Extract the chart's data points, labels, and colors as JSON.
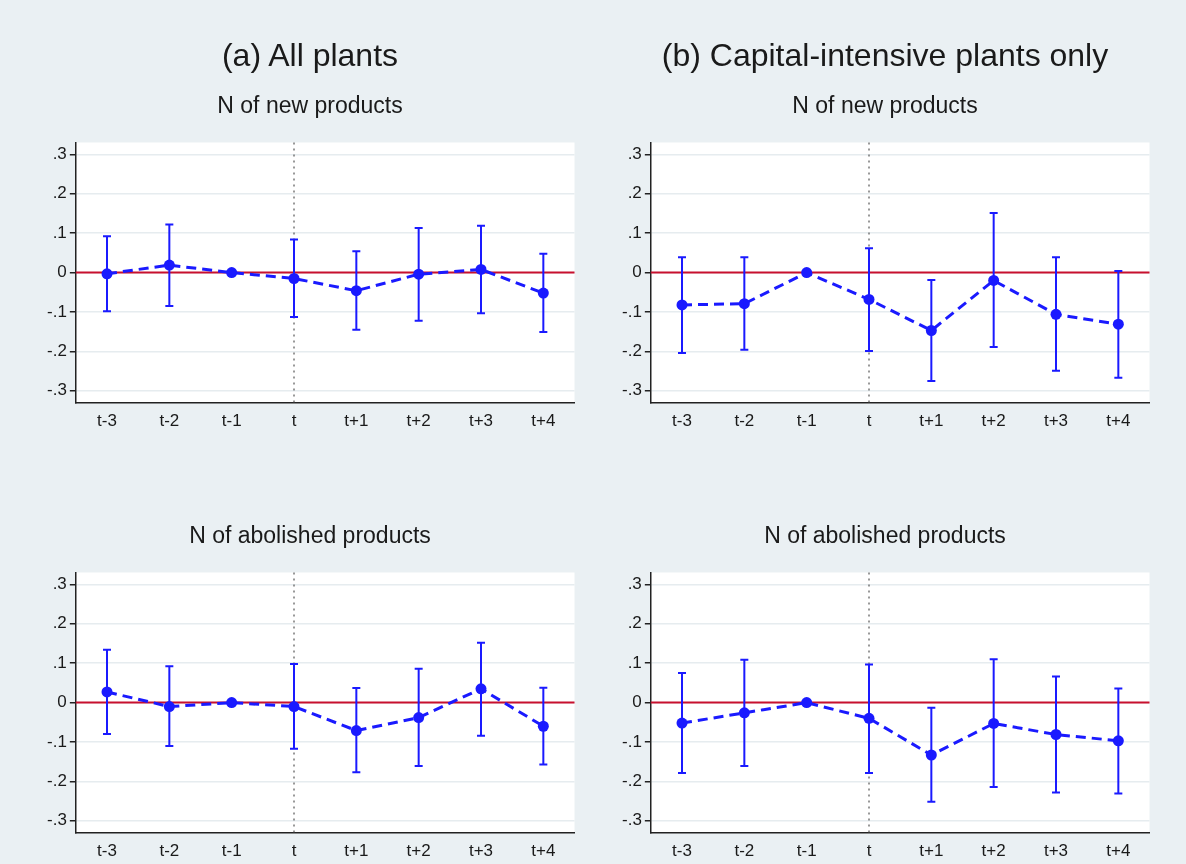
{
  "chart_data": [
    {
      "type": "line",
      "title": "(a) All plants",
      "subtitle": "N of new products",
      "categories": [
        "t-3",
        "t-2",
        "t-1",
        "t",
        "t+1",
        "t+2",
        "t+3",
        "t+4"
      ],
      "series": [
        {
          "color": "#1a1aff",
          "values": [
            -0.003,
            0.019,
            0,
            -0.015,
            -0.046,
            -0.004,
            0.008,
            -0.052
          ],
          "errors": [
            [
              -0.098,
              0.092
            ],
            [
              -0.085,
              0.122
            ],
            null,
            [
              -0.113,
              0.084
            ],
            [
              -0.145,
              0.054
            ],
            [
              -0.122,
              0.113
            ],
            [
              -0.103,
              0.119
            ],
            [
              -0.151,
              0.048
            ]
          ]
        }
      ],
      "ylim": [
        -0.33,
        0.33
      ],
      "yticks": [
        {
          "value": -0.3,
          "label": "-.3"
        },
        {
          "value": -0.2,
          "label": "-.2"
        },
        {
          "value": -0.1,
          "label": "-.1"
        },
        {
          "value": 0,
          "label": "0"
        },
        {
          "value": 0.1,
          "label": ".1"
        },
        {
          "value": 0.2,
          "label": ".2"
        },
        {
          "value": 0.3,
          "label": ".3"
        }
      ],
      "ref_lines": [
        {
          "axis": "y",
          "value": 0,
          "color": "#c8102e",
          "line_style": "solid"
        },
        {
          "axis": "x",
          "value": "t",
          "color": "#555555",
          "line_style": "dotted"
        }
      ],
      "grid": "y",
      "legend": false,
      "marker": "circle",
      "line_style": "dashed"
    },
    {
      "type": "line",
      "title": "(b) Capital-intensive plants only",
      "subtitle": "N of new products",
      "categories": [
        "t-3",
        "t-2",
        "t-1",
        "t",
        "t+1",
        "t+2",
        "t+3",
        "t+4"
      ],
      "series": [
        {
          "color": "#1a1aff",
          "values": [
            -0.082,
            -0.079,
            0,
            -0.068,
            -0.147,
            -0.02,
            -0.106,
            -0.131
          ],
          "errors": [
            [
              -0.204,
              0.039
            ],
            [
              -0.196,
              0.039
            ],
            null,
            [
              -0.199,
              0.062
            ],
            [
              -0.275,
              -0.019
            ],
            [
              -0.189,
              0.151
            ],
            [
              -0.249,
              0.039
            ],
            [
              -0.267,
              0.004
            ]
          ]
        }
      ],
      "ylim": [
        -0.33,
        0.33
      ],
      "yticks": [
        {
          "value": -0.3,
          "label": "-.3"
        },
        {
          "value": -0.2,
          "label": "-.2"
        },
        {
          "value": -0.1,
          "label": "-.1"
        },
        {
          "value": 0,
          "label": "0"
        },
        {
          "value": 0.1,
          "label": ".1"
        },
        {
          "value": 0.2,
          "label": ".2"
        },
        {
          "value": 0.3,
          "label": ".3"
        }
      ],
      "ref_lines": [
        {
          "axis": "y",
          "value": 0,
          "color": "#c8102e",
          "line_style": "solid"
        },
        {
          "axis": "x",
          "value": "t",
          "color": "#555555",
          "line_style": "dotted"
        }
      ],
      "grid": "y",
      "legend": false,
      "marker": "circle",
      "line_style": "dashed"
    },
    {
      "type": "line",
      "title": "N of abolished products",
      "categories": [
        "t-3",
        "t-2",
        "t-1",
        "t",
        "t+1",
        "t+2",
        "t+3",
        "t+4"
      ],
      "series": [
        {
          "color": "#1a1aff",
          "values": [
            0.027,
            -0.01,
            0,
            -0.01,
            -0.071,
            -0.038,
            0.035,
            -0.06
          ],
          "errors": [
            [
              -0.08,
              0.134
            ],
            [
              -0.11,
              0.092
            ],
            null,
            [
              -0.117,
              0.098
            ],
            [
              -0.177,
              0.037
            ],
            [
              -0.161,
              0.086
            ],
            [
              -0.084,
              0.152
            ],
            [
              -0.157,
              0.038
            ]
          ]
        }
      ],
      "ylim": [
        -0.33,
        0.33
      ],
      "yticks": [
        {
          "value": -0.3,
          "label": "-.3"
        },
        {
          "value": -0.2,
          "label": "-.2"
        },
        {
          "value": -0.1,
          "label": "-.1"
        },
        {
          "value": 0,
          "label": "0"
        },
        {
          "value": 0.1,
          "label": ".1"
        },
        {
          "value": 0.2,
          "label": ".2"
        },
        {
          "value": 0.3,
          "label": ".3"
        }
      ],
      "ref_lines": [
        {
          "axis": "y",
          "value": 0,
          "color": "#c8102e",
          "line_style": "solid"
        },
        {
          "axis": "x",
          "value": "t",
          "color": "#555555",
          "line_style": "dotted"
        }
      ],
      "grid": "y",
      "legend": false,
      "marker": "circle",
      "line_style": "dashed"
    },
    {
      "type": "line",
      "title": "N of abolished products",
      "categories": [
        "t-3",
        "t-2",
        "t-1",
        "t",
        "t+1",
        "t+2",
        "t+3",
        "t+4"
      ],
      "series": [
        {
          "color": "#1a1aff",
          "values": [
            -0.052,
            -0.026,
            0,
            -0.04,
            -0.133,
            -0.053,
            -0.081,
            -0.097
          ],
          "errors": [
            [
              -0.179,
              0.075
            ],
            [
              -0.161,
              0.109
            ],
            null,
            [
              -0.179,
              0.097
            ],
            [
              -0.252,
              -0.013
            ],
            [
              -0.214,
              0.11
            ],
            [
              -0.228,
              0.066
            ],
            [
              -0.231,
              0.036
            ]
          ]
        }
      ],
      "ylim": [
        -0.33,
        0.33
      ],
      "yticks": [
        {
          "value": -0.3,
          "label": "-.3"
        },
        {
          "value": -0.2,
          "label": "-.2"
        },
        {
          "value": -0.1,
          "label": "-.1"
        },
        {
          "value": 0,
          "label": "0"
        },
        {
          "value": 0.1,
          "label": ".1"
        },
        {
          "value": 0.2,
          "label": ".2"
        },
        {
          "value": 0.3,
          "label": ".3"
        }
      ],
      "ref_lines": [
        {
          "axis": "y",
          "value": 0,
          "color": "#c8102e",
          "line_style": "solid"
        },
        {
          "axis": "x",
          "value": "t",
          "color": "#555555",
          "line_style": "dotted"
        }
      ],
      "grid": "y",
      "legend": false,
      "marker": "circle",
      "line_style": "dashed"
    }
  ]
}
